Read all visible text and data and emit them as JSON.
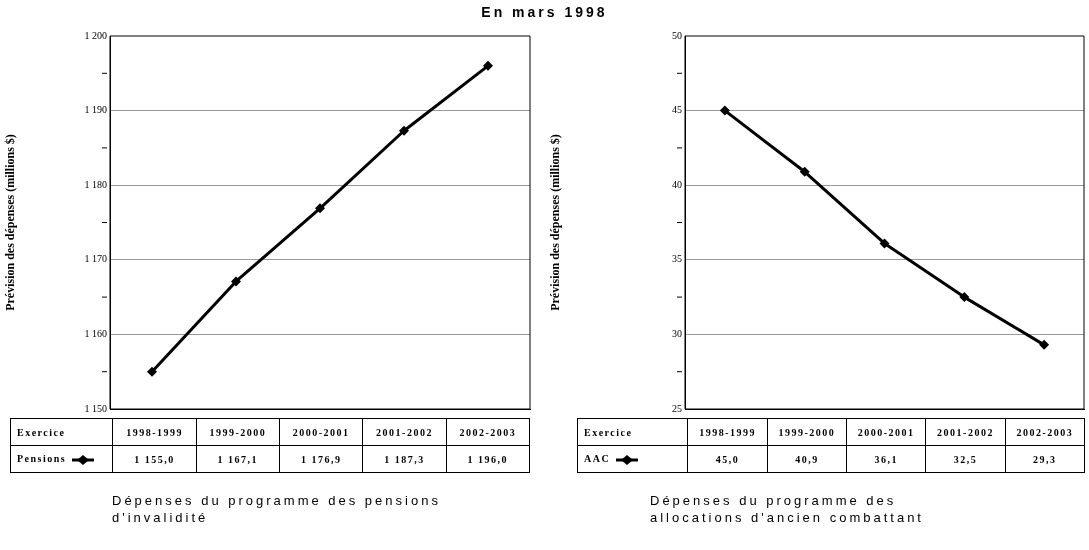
{
  "chart_data": [
    {
      "type": "line",
      "title": "En mars 1998",
      "ylabel": "Prévision des dépenses (millions $)",
      "xlabel": "Exercice",
      "categories": [
        "1998-1999",
        "1999-2000",
        "2000-2001",
        "2001-2002",
        "2002-2003"
      ],
      "series": [
        {
          "name": "Pensions",
          "color": "#000000",
          "values": [
            1155.0,
            1167.1,
            1176.9,
            1187.3,
            1196.0
          ],
          "value_labels": [
            "1 155,0",
            "1 167,1",
            "1 176,9",
            "1 187,3",
            "1 196,0"
          ]
        }
      ],
      "ylim": [
        1150,
        1200
      ],
      "yticks": [
        {
          "value": 1150,
          "label": "1 150"
        },
        {
          "value": 1155,
          "label": null
        },
        {
          "value": 1160,
          "label": "1 160"
        },
        {
          "value": 1165,
          "label": null
        },
        {
          "value": 1170,
          "label": "1 170"
        },
        {
          "value": 1175,
          "label": null
        },
        {
          "value": 1180,
          "label": "1 180"
        },
        {
          "value": 1185,
          "label": null
        },
        {
          "value": 1190,
          "label": "1 190"
        },
        {
          "value": 1195,
          "label": null
        },
        {
          "value": 1200,
          "label": "1 200"
        }
      ],
      "grid": "y",
      "marker": "diamond",
      "legend": "bottom left",
      "annotations": [
        "Dépenses du programme des pensions d'invalidité"
      ]
    },
    {
      "type": "line",
      "ylabel": "Prévision des dépenses (millions $)",
      "xlabel": "Exercice",
      "categories": [
        "1998-1999",
        "1999-2000",
        "2000-2001",
        "2001-2002",
        "2002-2003"
      ],
      "series": [
        {
          "name": "AAC",
          "color": "#000000",
          "values": [
            45.0,
            40.9,
            36.1,
            32.5,
            29.3
          ],
          "value_labels": [
            "45,0",
            "40,9",
            "36,1",
            "32,5",
            "29,3"
          ]
        }
      ],
      "ylim": [
        25,
        50
      ],
      "yticks": [
        25,
        {
          "value": 27.5,
          "label": null
        },
        30,
        {
          "value": 32.5,
          "label": null
        },
        35,
        {
          "value": 37.5,
          "label": null
        },
        40,
        {
          "value": 42.5,
          "label": null
        },
        45,
        {
          "value": 47.5,
          "label": null
        },
        50
      ],
      "grid": "y",
      "marker": "diamond",
      "legend": "bottom left",
      "annotations": [
        "Dépenses du programme des allocations d'ancien combattant"
      ]
    }
  ]
}
